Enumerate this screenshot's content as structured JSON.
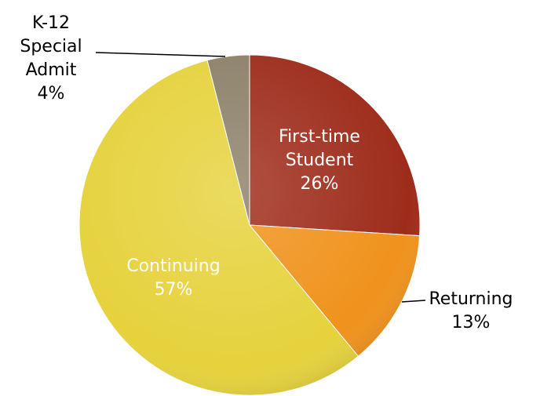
{
  "chart_data": {
    "type": "pie",
    "categories": [
      "First-time Student",
      "Returning",
      "Continuing",
      "K-12 Special Admit"
    ],
    "values": [
      26,
      13,
      57,
      4
    ],
    "value_labels": [
      "26%",
      "13%",
      "57%",
      "4%"
    ],
    "colors": [
      "#9e2c1b",
      "#f0921c",
      "#e6d23c",
      "#8c8068"
    ]
  }
}
